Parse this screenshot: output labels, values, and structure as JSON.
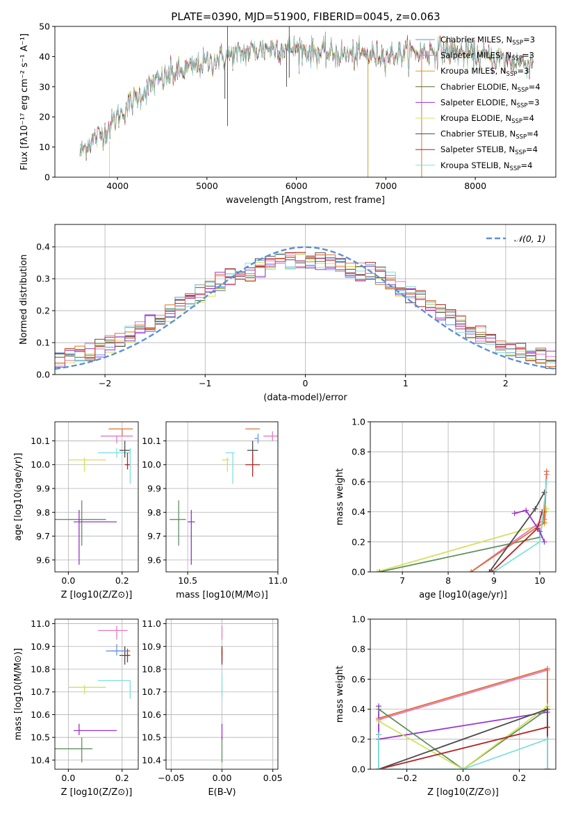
{
  "title": "PLATE=0390, MJD=51900, FIBERID=0045, z=0.063",
  "colors": [
    "#5f9ea0",
    "#e377c2",
    "#d4a017",
    "#556b2f",
    "#9932cc",
    "#d4e157",
    "#4a4a4a",
    "#b22222",
    "#80dfe0",
    "#e07030"
  ],
  "chart_data": [
    {
      "id": "spectrum",
      "type": "line",
      "xlabel": "wavelength [Angstrom, rest frame]",
      "ylabel": "Flux [fλ10⁻¹⁷ erg cm⁻² s⁻¹ A⁻¹]",
      "xlim": [
        3300,
        8900
      ],
      "ylim": [
        0,
        50
      ],
      "xticks": [
        4000,
        5000,
        6000,
        7000,
        8000
      ],
      "yticks": [
        0,
        10,
        20,
        30,
        40,
        50
      ],
      "legend_position": "upper-right",
      "series": [
        {
          "name": "Chabrier MILES, N_SSP=3"
        },
        {
          "name": "Salpeter MILES, N_SSP=3"
        },
        {
          "name": "Kroupa MILES, N_SSP=3"
        },
        {
          "name": "Chabrier ELODIE, N_SSP=4"
        },
        {
          "name": "Salpeter ELODIE, N_SSP=3"
        },
        {
          "name": "Kroupa ELODIE, N_SSP=4"
        },
        {
          "name": "Chabrier STELIB, N_SSP=4"
        },
        {
          "name": "Salpeter STELIB, N_SSP=4"
        },
        {
          "name": "Kroupa STELIB, N_SSP=4"
        }
      ],
      "continuum": {
        "x": [
          3580,
          3700,
          3900,
          4000,
          4200,
          4400,
          4600,
          4800,
          5000,
          5200,
          5400,
          5600,
          5800,
          6000,
          6200,
          6400,
          6600,
          6800,
          7000,
          7200,
          7400,
          7600,
          7800,
          8000,
          8200,
          8400,
          8600
        ],
        "y": [
          8,
          12,
          16,
          20,
          26,
          31,
          34,
          36,
          38,
          40,
          41,
          42.5,
          43,
          42.5,
          41.5,
          41,
          40.5,
          40.5,
          40.5,
          41,
          41.5,
          42,
          41.5,
          40.5,
          39.5,
          38.5,
          38
        ]
      },
      "data_x_range": [
        3580,
        8650
      ],
      "spikes": [
        {
          "x": 5230,
          "y1": 17,
          "y2": 50
        },
        {
          "x": 5200,
          "y1": 26,
          "y2": 38
        },
        {
          "x": 5920,
          "y1": 33,
          "y2": 50
        },
        {
          "x": 5890,
          "y1": 30,
          "y2": 42
        },
        {
          "x": 3910,
          "y1": 0,
          "y2": 12
        },
        {
          "x": 6800,
          "y1": 0,
          "y2": 40
        },
        {
          "x": 7400,
          "y1": 0,
          "y2": 42
        }
      ]
    },
    {
      "id": "residuals",
      "type": "step-histogram",
      "xlabel": "(data-model)/error",
      "ylabel": "Normed distribution",
      "xlim": [
        -2.5,
        2.5
      ],
      "ylim": [
        0,
        0.47
      ],
      "xticks": [
        -2,
        -1,
        0,
        1,
        2
      ],
      "yticks": [
        0.0,
        0.1,
        0.2,
        0.3,
        0.4
      ],
      "grid": true,
      "legend": "N(0,1)",
      "legend_position": "upper-right",
      "bin_range": [
        -2.5,
        2.5
      ],
      "bin_count": 50,
      "gaussian": {
        "mu": 0,
        "sigma": 1,
        "color": "#5b8fd6"
      }
    },
    {
      "id": "age_vs_Z",
      "type": "errorbar",
      "xlabel": "Z [log10(Z/Z⊙)]",
      "ylabel": "age [log10(age/yr)]",
      "xlim": [
        -0.05,
        0.26
      ],
      "ylim": [
        9.55,
        10.18
      ],
      "xticks": [
        0.0,
        0.2
      ],
      "yticks": [
        9.6,
        9.7,
        9.8,
        9.9,
        10.0,
        10.1
      ],
      "points": [
        {
          "x": 0.05,
          "xerr": [
            0.12,
            0.09
          ],
          "y": 9.77,
          "yerr": [
            0.11,
            0.08
          ],
          "c": "#5f8f5f"
        },
        {
          "x": 0.04,
          "xerr": [
            0.02,
            0.14
          ],
          "y": 9.76,
          "yerr": [
            0.18,
            0.05
          ],
          "c": "#9932cc"
        },
        {
          "x": 0.06,
          "xerr": [
            0.06,
            0.08
          ],
          "y": 10.02,
          "yerr": [
            0.05,
            0.01
          ],
          "c": "#d4e157"
        },
        {
          "x": 0.18,
          "xerr": [
            0.07,
            0.05
          ],
          "y": 10.05,
          "yerr": [
            0.02,
            0.02
          ],
          "c": "#80dfe0"
        },
        {
          "x": 0.2,
          "xerr": [
            0.05,
            0.04
          ],
          "y": 10.15,
          "yerr": [
            0.03,
            0.0
          ],
          "c": "#e07030"
        },
        {
          "x": 0.18,
          "xerr": [
            0.06,
            0.06
          ],
          "y": 10.12,
          "yerr": [
            0.03,
            0.0
          ],
          "c": "#e377c2"
        },
        {
          "x": 0.21,
          "xerr": [
            0.02,
            0.02
          ],
          "y": 10.06,
          "yerr": [
            0.03,
            0.04
          ],
          "c": "#4a4a4a"
        },
        {
          "x": 0.22,
          "xerr": [
            0.01,
            0.01
          ],
          "y": 10.0,
          "yerr": [
            0.02,
            0.05
          ],
          "c": "#b22222"
        },
        {
          "x": 0.23,
          "xerr": [
            0.0,
            0.0
          ],
          "y": 10.02,
          "yerr": [
            0.1,
            0.05
          ],
          "c": "#80dfe0"
        }
      ]
    },
    {
      "id": "age_vs_mass",
      "type": "errorbar",
      "xlabel": "mass [log10(M/M⊙)]",
      "xlim": [
        10.38,
        11.0
      ],
      "ylim": [
        9.55,
        10.18
      ],
      "xticks": [
        10.5,
        11.0
      ],
      "yticks": [
        9.6,
        9.7,
        9.8,
        9.9,
        10.0,
        10.1
      ],
      "points": [
        {
          "x": 10.45,
          "xerr": [
            0.05,
            0.04
          ],
          "y": 9.77,
          "yerr": [
            0.11,
            0.08
          ],
          "c": "#5f8f5f"
        },
        {
          "x": 10.52,
          "xerr": [
            0.02,
            0.02
          ],
          "y": 9.76,
          "yerr": [
            0.18,
            0.05
          ],
          "c": "#9932cc"
        },
        {
          "x": 10.72,
          "xerr": [
            0.03,
            0.01
          ],
          "y": 10.02,
          "yerr": [
            0.05,
            0.01
          ],
          "c": "#d4e157"
        },
        {
          "x": 10.75,
          "xerr": [
            0.04,
            0.01
          ],
          "y": 10.05,
          "yerr": [
            0.13,
            0.0
          ],
          "c": "#80dfe0"
        },
        {
          "x": 10.88,
          "xerr": [
            0.06,
            0.02
          ],
          "y": 10.15,
          "yerr": [
            0.0,
            0.0
          ],
          "c": "#e07030"
        },
        {
          "x": 10.97,
          "xerr": [
            0.05,
            0.03
          ],
          "y": 10.12,
          "yerr": [
            0.02,
            0.02
          ],
          "c": "#e377c2"
        },
        {
          "x": 10.86,
          "xerr": [
            0.03,
            0.03
          ],
          "y": 10.06,
          "yerr": [
            0.05,
            0.04
          ],
          "c": "#4a4a4a"
        },
        {
          "x": 10.86,
          "xerr": [
            0.04,
            0.04
          ],
          "y": 10.0,
          "yerr": [
            0.05,
            0.05
          ],
          "c": "#b22222"
        },
        {
          "x": 10.89,
          "xerr": [
            0.02,
            0.0
          ],
          "y": 10.11,
          "yerr": [
            0.02,
            0.02
          ],
          "c": "#6495ed"
        }
      ]
    },
    {
      "id": "mass_weight_vs_age",
      "type": "line",
      "xlabel": "age  [log10(age/yr)]",
      "ylabel": "mass weight",
      "xlim": [
        6.3,
        10.35
      ],
      "ylim": [
        0,
        1
      ],
      "xticks": [
        7,
        8,
        9,
        10
      ],
      "yticks": [
        0.0,
        0.2,
        0.4,
        0.6,
        0.8,
        1.0
      ],
      "grid": true,
      "series": [
        {
          "c": "#d4e157",
          "x": [
            6.45,
            10.1,
            10.15
          ],
          "y": [
            0.0,
            0.32,
            0.42
          ]
        },
        {
          "c": "#5f8f5f",
          "x": [
            6.5,
            10.0,
            10.1
          ],
          "y": [
            0.0,
            0.23,
            0.4
          ]
        },
        {
          "c": "#e377c2",
          "x": [
            8.5,
            10.1,
            10.15
          ],
          "y": [
            0.0,
            0.35,
            0.65
          ]
        },
        {
          "c": "#e07030",
          "x": [
            8.5,
            10.1,
            10.15
          ],
          "y": [
            0.0,
            0.33,
            0.67
          ]
        },
        {
          "c": "#4a4a4a",
          "x": [
            8.9,
            9.9,
            10.1
          ],
          "y": [
            0.0,
            0.42,
            0.53
          ]
        },
        {
          "c": "#b22222",
          "x": [
            8.95,
            9.95,
            10.05
          ],
          "y": [
            0.0,
            0.29,
            0.4
          ]
        },
        {
          "c": "#80dfe0",
          "x": [
            9.0,
            10.0,
            10.15
          ],
          "y": [
            0.0,
            0.2,
            0.6
          ]
        },
        {
          "c": "#9932cc",
          "x": [
            9.45,
            9.7,
            10.0,
            10.1
          ],
          "y": [
            0.39,
            0.41,
            0.27,
            0.2
          ]
        }
      ]
    },
    {
      "id": "mass_vs_Z",
      "type": "errorbar",
      "xlabel": "Z [log10(Z/Z⊙)]",
      "ylabel": "mass [log10(M/M⊙)]",
      "xlim": [
        -0.05,
        0.26
      ],
      "ylim": [
        10.36,
        11.02
      ],
      "xticks": [
        0.0,
        0.2
      ],
      "yticks": [
        10.4,
        10.5,
        10.6,
        10.7,
        10.8,
        10.9,
        11.0
      ],
      "points": [
        {
          "x": 0.05,
          "xerr": [
            0.12,
            0.04
          ],
          "y": 10.45,
          "yerr": [
            0.06,
            0.05
          ],
          "c": "#5f8f5f"
        },
        {
          "x": 0.04,
          "xerr": [
            0.02,
            0.14
          ],
          "y": 10.53,
          "yerr": [
            0.02,
            0.03
          ],
          "c": "#9932cc"
        },
        {
          "x": 0.06,
          "xerr": [
            0.06,
            0.08
          ],
          "y": 10.72,
          "yerr": [
            0.03,
            0.01
          ],
          "c": "#d4e157"
        },
        {
          "x": 0.23,
          "xerr": [
            0.12,
            0.0
          ],
          "y": 10.75,
          "yerr": [
            0.08,
            0.0
          ],
          "c": "#80dfe0"
        },
        {
          "x": 0.18,
          "xerr": [
            0.07,
            0.04
          ],
          "y": 10.97,
          "yerr": [
            0.04,
            0.02
          ],
          "c": "#e377c2"
        },
        {
          "x": 0.21,
          "xerr": [
            0.05,
            0.02
          ],
          "y": 10.88,
          "yerr": [
            0.02,
            0.02
          ],
          "c": "#e07030"
        },
        {
          "x": 0.21,
          "xerr": [
            0.02,
            0.02
          ],
          "y": 10.86,
          "yerr": [
            0.04,
            0.04
          ],
          "c": "#4a4a4a"
        },
        {
          "x": 0.22,
          "xerr": [
            0.01,
            0.01
          ],
          "y": 10.86,
          "yerr": [
            0.03,
            0.03
          ],
          "c": "#b22222"
        },
        {
          "x": 0.18,
          "xerr": [
            0.04,
            0.04
          ],
          "y": 10.88,
          "yerr": [
            0.02,
            0.03
          ],
          "c": "#6495ed"
        }
      ]
    },
    {
      "id": "mass_vs_EBV",
      "type": "errorbar",
      "xlabel": "E(B-V)",
      "xlim": [
        -0.055,
        0.055
      ],
      "ylim": [
        10.36,
        11.02
      ],
      "xticks": [
        -0.05,
        0.0,
        0.05
      ],
      "yticks": [
        10.4,
        10.5,
        10.6,
        10.7,
        10.8,
        10.9,
        11.0
      ],
      "points": [
        {
          "x": 0.0,
          "xerr": [
            0,
            0
          ],
          "y": 10.45,
          "yerr": [
            0.06,
            0.05
          ],
          "c": "#5f8f5f"
        },
        {
          "x": 0.0,
          "xerr": [
            0,
            0
          ],
          "y": 10.53,
          "yerr": [
            0.04,
            0.03
          ],
          "c": "#9932cc"
        },
        {
          "x": 0.0,
          "xerr": [
            0,
            0
          ],
          "y": 10.72,
          "yerr": [
            0.03,
            0.01
          ],
          "c": "#d4e157"
        },
        {
          "x": 0.0,
          "xerr": [
            0,
            0
          ],
          "y": 10.75,
          "yerr": [
            0.08,
            0.03
          ],
          "c": "#80dfe0"
        },
        {
          "x": 0.0,
          "xerr": [
            0,
            0
          ],
          "y": 10.97,
          "yerr": [
            0.04,
            0.02
          ],
          "c": "#e377c2"
        },
        {
          "x": 0.0,
          "xerr": [
            0,
            0
          ],
          "y": 10.88,
          "yerr": [
            0.02,
            0.02
          ],
          "c": "#e07030"
        },
        {
          "x": 0.0,
          "xerr": [
            0,
            0
          ],
          "y": 10.86,
          "yerr": [
            0.04,
            0.04
          ],
          "c": "#4a4a4a"
        },
        {
          "x": 0.0,
          "xerr": [
            0,
            0
          ],
          "y": 10.86,
          "yerr": [
            0.03,
            0.03
          ],
          "c": "#b22222"
        }
      ]
    },
    {
      "id": "mass_weight_vs_Z",
      "type": "line",
      "xlabel": "Z [log10(Z/Z⊙)]",
      "ylabel": "mass weight",
      "xlim": [
        -0.33,
        0.33
      ],
      "ylim": [
        0,
        1
      ],
      "xticks": [
        -0.2,
        0.0,
        0.2
      ],
      "yticks": [
        0.0,
        0.2,
        0.4,
        0.6,
        0.8,
        1.0
      ],
      "grid": true,
      "series": [
        {
          "c": "#e377c2",
          "x": [
            -0.3,
            0.3,
            0.3
          ],
          "y": [
            0.33,
            0.66,
            0.0
          ]
        },
        {
          "c": "#e07030",
          "x": [
            -0.3,
            0.3,
            0.3
          ],
          "y": [
            0.34,
            0.67,
            0.0
          ]
        },
        {
          "c": "#9932cc",
          "x": [
            -0.3,
            -0.3,
            0.3,
            0.3
          ],
          "y": [
            0.42,
            0.2,
            0.38,
            0.0
          ]
        },
        {
          "c": "#5f8f5f",
          "x": [
            -0.3,
            0.0,
            0.3,
            0.3
          ],
          "y": [
            0.4,
            0.0,
            0.4,
            0.0
          ]
        },
        {
          "c": "#d4e157",
          "x": [
            -0.3,
            0.0,
            0.3,
            0.3
          ],
          "y": [
            0.32,
            0.0,
            0.42,
            0.0
          ]
        },
        {
          "c": "#4a4a4a",
          "x": [
            -0.3,
            -0.3,
            0.3,
            0.3
          ],
          "y": [
            0.23,
            0.0,
            0.4,
            0.0
          ]
        },
        {
          "c": "#b22222",
          "x": [
            -0.3,
            0.3,
            0.3
          ],
          "y": [
            0.0,
            0.28,
            0.0
          ]
        },
        {
          "c": "#80dfe0",
          "x": [
            -0.3,
            -0.3,
            0.0,
            0.3,
            0.3
          ],
          "y": [
            0.23,
            0.0,
            0.0,
            0.2,
            0.0
          ]
        }
      ]
    }
  ]
}
